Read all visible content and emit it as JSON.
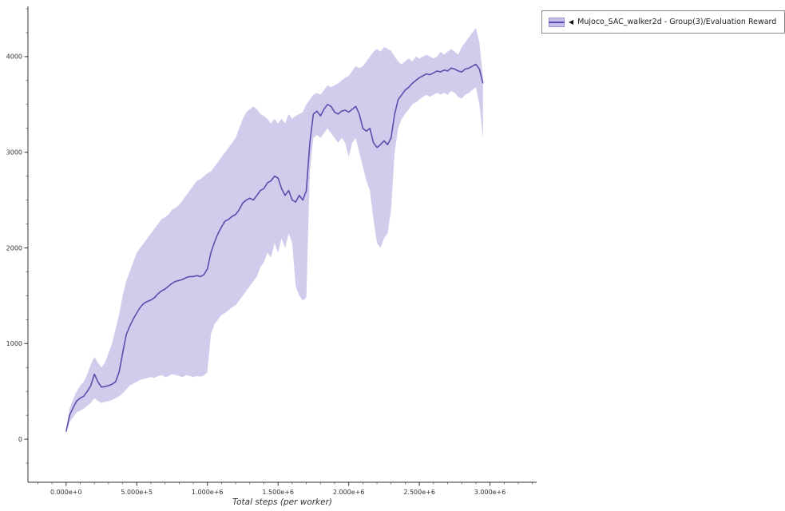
{
  "legend": {
    "marker": "◀",
    "label": "Mujoco_SAC_walker2d - Group(3)/Evaluation Reward",
    "swatch_fill": "#c6bfe7",
    "swatch_border": "#9b91d2",
    "swatch_line": "#584fae"
  },
  "chart_data": {
    "type": "line",
    "title": "",
    "xlabel": "Total steps (per worker)",
    "ylabel": "",
    "grid": false,
    "legend_position": "top-right-outside",
    "xlim": [
      -270000,
      3330000
    ],
    "ylim": [
      -450,
      4525
    ],
    "x_minor_step": 100000,
    "y_minor_step": 250,
    "x_ticks": [
      {
        "value": 0,
        "label": "0.000e+0"
      },
      {
        "value": 500000,
        "label": "5.000e+5"
      },
      {
        "value": 1000000,
        "label": "1.000e+6"
      },
      {
        "value": 1500000,
        "label": "1.500e+6"
      },
      {
        "value": 2000000,
        "label": "2.000e+6"
      },
      {
        "value": 2500000,
        "label": "2.500e+6"
      },
      {
        "value": 3000000,
        "label": "3.000e+6"
      }
    ],
    "y_ticks": [
      {
        "value": 0,
        "label": "0"
      },
      {
        "value": 1000,
        "label": "1000"
      },
      {
        "value": 2000,
        "label": "2000"
      },
      {
        "value": 3000,
        "label": "3000"
      },
      {
        "value": 4000,
        "label": "4000"
      }
    ],
    "series": [
      {
        "name": "Mujoco_SAC_walker2d - Group(3)/Evaluation Reward",
        "line_color": "#584fae",
        "band_color": "#c6bfe7",
        "band_opacity": 0.8,
        "x": [
          0,
          25000,
          50000,
          75000,
          100000,
          125000,
          150000,
          175000,
          200000,
          225000,
          250000,
          275000,
          300000,
          325000,
          350000,
          375000,
          400000,
          425000,
          450000,
          475000,
          500000,
          525000,
          550000,
          575000,
          600000,
          625000,
          650000,
          675000,
          700000,
          725000,
          750000,
          775000,
          800000,
          825000,
          850000,
          875000,
          900000,
          925000,
          950000,
          975000,
          1000000,
          1025000,
          1050000,
          1075000,
          1100000,
          1125000,
          1150000,
          1175000,
          1200000,
          1225000,
          1250000,
          1275000,
          1300000,
          1325000,
          1350000,
          1375000,
          1400000,
          1425000,
          1450000,
          1475000,
          1500000,
          1525000,
          1550000,
          1575000,
          1600000,
          1625000,
          1650000,
          1675000,
          1700000,
          1725000,
          1750000,
          1775000,
          1800000,
          1825000,
          1850000,
          1875000,
          1900000,
          1925000,
          1950000,
          1975000,
          2000000,
          2025000,
          2050000,
          2075000,
          2100000,
          2125000,
          2150000,
          2175000,
          2200000,
          2225000,
          2250000,
          2275000,
          2300000,
          2325000,
          2350000,
          2375000,
          2400000,
          2425000,
          2450000,
          2475000,
          2500000,
          2525000,
          2550000,
          2575000,
          2600000,
          2625000,
          2650000,
          2675000,
          2700000,
          2725000,
          2750000,
          2775000,
          2800000,
          2825000,
          2850000,
          2875000,
          2900000,
          2925000,
          2950000
        ],
        "mean": [
          80,
          250,
          330,
          400,
          430,
          450,
          500,
          560,
          680,
          600,
          545,
          550,
          560,
          575,
          600,
          700,
          900,
          1090,
          1180,
          1255,
          1320,
          1380,
          1420,
          1440,
          1455,
          1480,
          1520,
          1550,
          1570,
          1600,
          1630,
          1650,
          1660,
          1670,
          1690,
          1700,
          1700,
          1710,
          1700,
          1720,
          1780,
          1950,
          2060,
          2150,
          2220,
          2280,
          2300,
          2330,
          2350,
          2400,
          2470,
          2500,
          2520,
          2500,
          2550,
          2600,
          2620,
          2680,
          2700,
          2750,
          2730,
          2620,
          2550,
          2600,
          2500,
          2480,
          2550,
          2500,
          2600,
          3100,
          3400,
          3430,
          3380,
          3450,
          3500,
          3480,
          3420,
          3400,
          3430,
          3440,
          3420,
          3450,
          3480,
          3400,
          3250,
          3220,
          3250,
          3100,
          3050,
          3080,
          3120,
          3080,
          3150,
          3400,
          3550,
          3600,
          3650,
          3680,
          3720,
          3750,
          3780,
          3800,
          3820,
          3810,
          3830,
          3850,
          3840,
          3860,
          3850,
          3880,
          3870,
          3850,
          3840,
          3870,
          3880,
          3900,
          3920,
          3870,
          3720
        ],
        "lower": [
          60,
          180,
          230,
          280,
          300,
          320,
          350,
          380,
          430,
          400,
          380,
          390,
          400,
          410,
          430,
          450,
          480,
          520,
          560,
          580,
          600,
          620,
          630,
          640,
          650,
          640,
          660,
          670,
          650,
          660,
          680,
          670,
          660,
          650,
          670,
          660,
          650,
          660,
          655,
          665,
          700,
          1100,
          1200,
          1250,
          1300,
          1320,
          1350,
          1380,
          1400,
          1450,
          1500,
          1550,
          1600,
          1650,
          1700,
          1800,
          1850,
          1950,
          1900,
          2050,
          1950,
          2100,
          2000,
          2150,
          2050,
          1600,
          1500,
          1450,
          1480,
          2800,
          3150,
          3180,
          3150,
          3200,
          3250,
          3200,
          3150,
          3100,
          3150,
          3100,
          2950,
          3100,
          3150,
          3000,
          2850,
          2700,
          2600,
          2300,
          2050,
          2000,
          2100,
          2150,
          2400,
          3000,
          3250,
          3350,
          3400,
          3450,
          3500,
          3520,
          3550,
          3580,
          3600,
          3580,
          3600,
          3620,
          3600,
          3620,
          3600,
          3640,
          3620,
          3580,
          3560,
          3600,
          3620,
          3650,
          3680,
          3500,
          3150
        ],
        "upper": [
          110,
          320,
          420,
          500,
          560,
          600,
          680,
          780,
          860,
          800,
          750,
          800,
          900,
          1000,
          1150,
          1300,
          1500,
          1650,
          1750,
          1850,
          1950,
          2000,
          2050,
          2100,
          2150,
          2200,
          2250,
          2300,
          2320,
          2350,
          2400,
          2420,
          2450,
          2500,
          2550,
          2600,
          2650,
          2700,
          2720,
          2750,
          2780,
          2800,
          2850,
          2900,
          2950,
          3000,
          3050,
          3100,
          3150,
          3250,
          3350,
          3420,
          3450,
          3480,
          3450,
          3400,
          3380,
          3350,
          3300,
          3350,
          3300,
          3350,
          3300,
          3400,
          3350,
          3380,
          3400,
          3420,
          3500,
          3550,
          3600,
          3620,
          3600,
          3650,
          3700,
          3680,
          3700,
          3720,
          3750,
          3780,
          3800,
          3850,
          3900,
          3880,
          3900,
          3950,
          4000,
          4050,
          4080,
          4050,
          4100,
          4080,
          4060,
          4000,
          3950,
          3920,
          3950,
          3980,
          3950,
          4000,
          3980,
          4000,
          4020,
          4000,
          3980,
          4000,
          4050,
          4020,
          4050,
          4080,
          4050,
          4020,
          4100,
          4150,
          4200,
          4250,
          4300,
          4150,
          3780
        ]
      }
    ]
  }
}
